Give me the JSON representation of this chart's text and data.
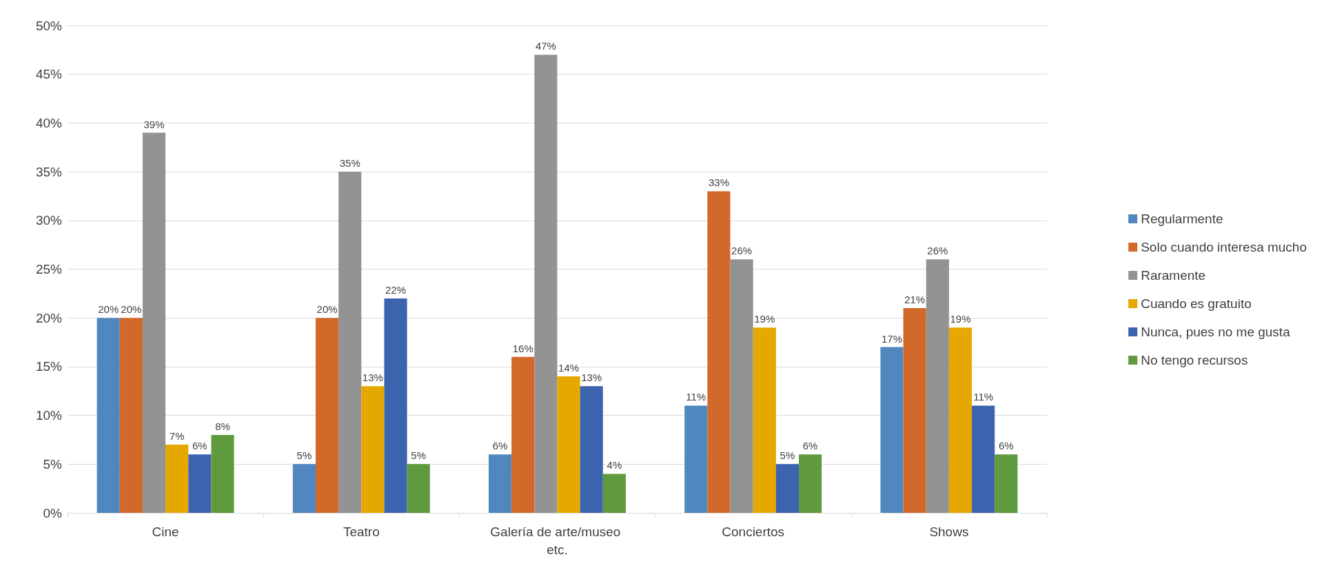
{
  "chart_data": {
    "type": "bar",
    "categories": [
      "Cine",
      "Teatro",
      "Galería de arte/museo etc.",
      "Conciertos",
      "Shows"
    ],
    "series": [
      {
        "name": "Regularmente",
        "color": "#4f87be",
        "values": [
          20,
          5,
          6,
          11,
          17
        ],
        "value_labels": [
          "20%",
          "5%",
          "6%",
          "11%",
          "17%"
        ]
      },
      {
        "name": "Solo cuando interesa mucho",
        "color": "#d2692a",
        "values": [
          20,
          20,
          16,
          33,
          21
        ],
        "value_labels": [
          "20%",
          "20%",
          "16%",
          "33%",
          "21%"
        ]
      },
      {
        "name": "Raramente",
        "color": "#939393",
        "values": [
          39,
          35,
          47,
          26,
          26
        ],
        "value_labels": [
          "39%",
          "35%",
          "47%",
          "26%",
          "26%"
        ]
      },
      {
        "name": "Cuando es gratuito",
        "color": "#e5a800",
        "values": [
          7,
          13,
          14,
          19,
          19
        ],
        "value_labels": [
          "7%",
          "13%",
          "14%",
          "19%",
          "19%"
        ]
      },
      {
        "name": "Nunca, pues no me gusta",
        "color": "#3c63ae",
        "values": [
          6,
          22,
          13,
          5,
          11
        ],
        "value_labels": [
          "6%",
          "22%",
          "13%",
          "5%",
          "11%"
        ]
      },
      {
        "name": "No tengo recursos",
        "color": "#5f9b3e",
        "values": [
          8,
          5,
          4,
          6,
          6
        ],
        "value_labels": [
          "8%",
          "5%",
          "4%",
          "6%",
          "6%"
        ]
      }
    ],
    "ylim": [
      0,
      50
    ],
    "yticks": [
      {
        "value": 0,
        "label": "0%"
      },
      {
        "value": 5,
        "label": "5%"
      },
      {
        "value": 10,
        "label": "10%"
      },
      {
        "value": 15,
        "label": "15%"
      },
      {
        "value": 20,
        "label": "20%"
      },
      {
        "value": 25,
        "label": "25%"
      },
      {
        "value": 30,
        "label": "30%"
      },
      {
        "value": 35,
        "label": "35%"
      },
      {
        "value": 40,
        "label": "40%"
      },
      {
        "value": 45,
        "label": "45%"
      },
      {
        "value": 50,
        "label": "50%"
      }
    ],
    "grid": "y",
    "legend": "right"
  }
}
